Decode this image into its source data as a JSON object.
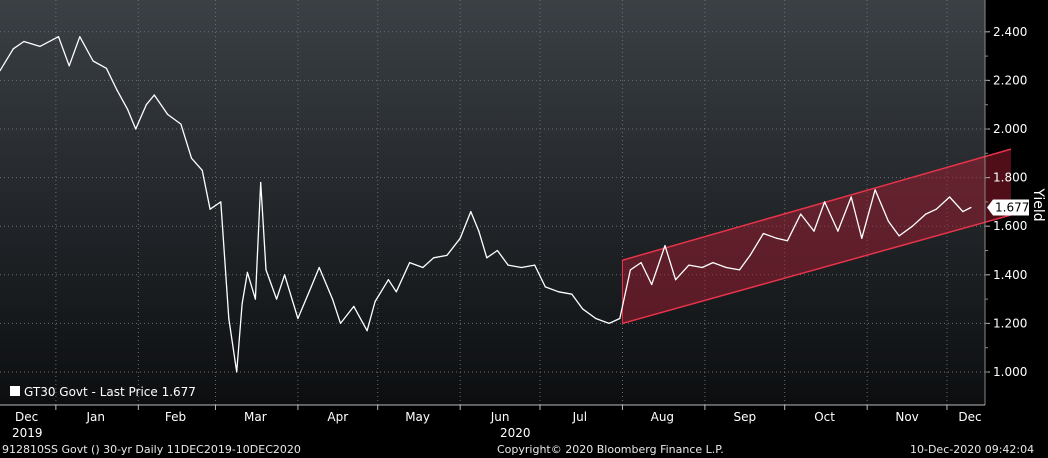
{
  "chart_data": {
    "type": "line",
    "title": "",
    "ylabel": "Yield",
    "ylim": [
      0.9,
      2.5
    ],
    "yticks": [
      "1.000",
      "1.200",
      "1.400",
      "1.600",
      "1.800",
      "2.000",
      "2.200",
      "2.400"
    ],
    "month_labels": [
      "Dec",
      "Jan",
      "Feb",
      "Mar",
      "Apr",
      "May",
      "Jun",
      "Jul",
      "Aug",
      "Sep",
      "Oct",
      "Nov",
      "Dec"
    ],
    "year_labels": [
      "2019",
      "2020"
    ],
    "grid": true,
    "legend": {
      "position": "bottom-left",
      "text": "GT30 Govt - Last Price 1.677",
      "color": "#ffffff"
    },
    "last_value_label": "1.677",
    "series": [
      {
        "name": "GT30 Govt - Last Price",
        "color": "#ffffff",
        "x": [
          "2019-12-11",
          "2019-12-16",
          "2019-12-20",
          "2019-12-26",
          "2020-01-02",
          "2020-01-06",
          "2020-01-10",
          "2020-01-15",
          "2020-01-20",
          "2020-01-24",
          "2020-01-28",
          "2020-01-31",
          "2020-02-04",
          "2020-02-07",
          "2020-02-12",
          "2020-02-17",
          "2020-02-21",
          "2020-02-25",
          "2020-02-28",
          "2020-03-03",
          "2020-03-06",
          "2020-03-09",
          "2020-03-11",
          "2020-03-13",
          "2020-03-16",
          "2020-03-18",
          "2020-03-20",
          "2020-03-24",
          "2020-03-27",
          "2020-04-01",
          "2020-04-06",
          "2020-04-09",
          "2020-04-14",
          "2020-04-17",
          "2020-04-22",
          "2020-04-27",
          "2020-04-30",
          "2020-05-05",
          "2020-05-08",
          "2020-05-13",
          "2020-05-18",
          "2020-05-22",
          "2020-05-27",
          "2020-06-01",
          "2020-06-05",
          "2020-06-08",
          "2020-06-11",
          "2020-06-15",
          "2020-06-19",
          "2020-06-24",
          "2020-06-29",
          "2020-07-03",
          "2020-07-08",
          "2020-07-13",
          "2020-07-17",
          "2020-07-22",
          "2020-07-27",
          "2020-07-31",
          "2020-08-04",
          "2020-08-08",
          "2020-08-12",
          "2020-08-17",
          "2020-08-21",
          "2020-08-26",
          "2020-08-31",
          "2020-09-04",
          "2020-09-09",
          "2020-09-14",
          "2020-09-18",
          "2020-09-23",
          "2020-09-28",
          "2020-10-02",
          "2020-10-07",
          "2020-10-12",
          "2020-10-16",
          "2020-10-21",
          "2020-10-26",
          "2020-10-30",
          "2020-11-04",
          "2020-11-09",
          "2020-11-13",
          "2020-11-18",
          "2020-11-23",
          "2020-11-27",
          "2020-12-02",
          "2020-12-07",
          "2020-12-10"
        ],
        "values": [
          2.24,
          2.33,
          2.36,
          2.34,
          2.38,
          2.26,
          2.38,
          2.28,
          2.25,
          2.16,
          2.08,
          2.0,
          2.1,
          2.14,
          2.06,
          2.02,
          1.88,
          1.83,
          1.67,
          1.7,
          1.22,
          1.0,
          1.28,
          1.41,
          1.3,
          1.78,
          1.42,
          1.3,
          1.4,
          1.22,
          1.35,
          1.43,
          1.3,
          1.2,
          1.27,
          1.17,
          1.29,
          1.38,
          1.33,
          1.45,
          1.43,
          1.47,
          1.48,
          1.55,
          1.66,
          1.58,
          1.47,
          1.5,
          1.44,
          1.43,
          1.44,
          1.35,
          1.33,
          1.32,
          1.26,
          1.22,
          1.2,
          1.22,
          1.42,
          1.45,
          1.36,
          1.52,
          1.38,
          1.44,
          1.43,
          1.45,
          1.43,
          1.42,
          1.48,
          1.57,
          1.55,
          1.54,
          1.65,
          1.58,
          1.7,
          1.58,
          1.72,
          1.55,
          1.75,
          1.62,
          1.56,
          1.6,
          1.65,
          1.67,
          1.72,
          1.66,
          1.677
        ]
      }
    ],
    "channel": {
      "color": "#e8334a",
      "x_start": "2020-08-01",
      "x_end": "2020-12-10",
      "upper": [
        1.46,
        1.87
      ],
      "lower": [
        1.2,
        1.6
      ]
    }
  },
  "footer": {
    "left": "912810SS Govt () 30-yr  Daily 11DEC2019-10DEC2020",
    "center": "Copyright© 2020 Bloomberg Finance L.P.",
    "right": "10-Dec-2020 09:42:04"
  }
}
